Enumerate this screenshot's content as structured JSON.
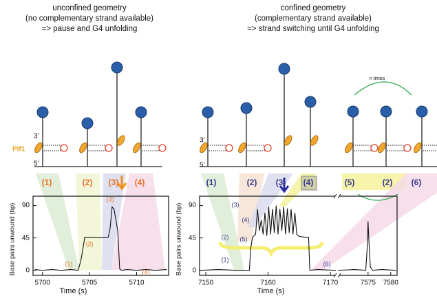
{
  "left": {
    "title": [
      "unconfined geometry",
      "(no complementary strand available)",
      "=> pause and G4 unfolding"
    ],
    "labels": {
      "three_prime": "3'",
      "five_prime": "5'",
      "pif1": "Pif1"
    },
    "steps": [
      "(1)",
      "(2)",
      "(3)",
      "(4)"
    ]
  },
  "right": {
    "title": [
      "confined geometry",
      "(complementary strand available)",
      "=> strand switching until G4 unfolding"
    ],
    "labels": {
      "three_prime": "3'",
      "five_prime": "5'",
      "n_times": "n times"
    },
    "steps": [
      "(1)",
      "(2)",
      "(3)",
      "(4)",
      "(5)",
      "(2)",
      "(6)"
    ]
  },
  "chart_data": [
    {
      "type": "line",
      "xlabel": "Time (s)",
      "ylabel": "Base pairs unwound (bp)",
      "xlim": [
        5699,
        5713.4
      ],
      "xticks": [
        5700,
        5705,
        5710
      ],
      "ylim": [
        -7,
        103
      ],
      "yticks": [
        0,
        45,
        90
      ],
      "annotations": [
        "(1)",
        "(2)",
        "(3)",
        "(4)"
      ],
      "annotation_color": "#e8732a",
      "series": [
        {
          "color": "#111111",
          "x": [
            5699.2,
            5700,
            5701,
            5702,
            5703,
            5703.8,
            5704.1,
            5704.3,
            5704.5,
            5705,
            5706,
            5707,
            5707.2,
            5707.4,
            5707.6,
            5707.8,
            5708,
            5708.2,
            5708.4,
            5709,
            5710,
            5711,
            5712,
            5713.2
          ],
          "values": [
            1,
            0,
            1,
            0,
            1,
            0,
            15,
            30,
            46,
            46,
            45,
            46,
            60,
            88,
            85,
            70,
            55,
            2,
            0,
            1,
            0,
            1,
            0,
            1
          ]
        }
      ]
    },
    {
      "type": "line",
      "xlabel": "Time (s)",
      "ylabel": "Base pairs unwound (bp)",
      "xlim": [
        7149,
        7171.1
      ],
      "xticks": [
        7150,
        7160,
        7170
      ],
      "x2lim": [
        7568.2,
        7581.4
      ],
      "x2ticks": [
        7575,
        7580
      ],
      "ylim": [
        -7,
        103
      ],
      "yticks": [
        0,
        45,
        90
      ],
      "annotations": [
        "(1)",
        "(2)",
        "(3)",
        "(4)",
        "(5)",
        "(6)"
      ],
      "annotation_color": "#3a3a8c",
      "series": [
        {
          "color": "#111111",
          "x": [
            7149.2,
            7152,
            7155,
            7157,
            7157.2,
            7157.5,
            7158,
            7158.3,
            7158.6,
            7158.9,
            7159.2,
            7159.5,
            7159.8,
            7160.1,
            7160.4,
            7160.7,
            7161,
            7161.3,
            7161.6,
            7161.9,
            7162.2,
            7162.5,
            7162.8,
            7163.1,
            7163.4,
            7163.7,
            7164,
            7164.3,
            7164.6,
            7165,
            7166,
            7166.5,
            7166.7,
            7168,
            7170.9
          ],
          "values": [
            0,
            1,
            0,
            0,
            30,
            46,
            50,
            85,
            55,
            70,
            50,
            80,
            48,
            88,
            50,
            85,
            52,
            90,
            50,
            85,
            55,
            88,
            50,
            86,
            52,
            85,
            50,
            80,
            50,
            47,
            46,
            46,
            0,
            1,
            0
          ]
        },
        {
          "color": "#111111",
          "axis": "x2",
          "x": [
            7568.4,
            7572,
            7574.5,
            7574.8,
            7575,
            7575.2,
            7575.5,
            7576,
            7578,
            7581.2
          ],
          "values": [
            0,
            1,
            0,
            30,
            68,
            40,
            5,
            0,
            1,
            0
          ]
        }
      ]
    }
  ]
}
